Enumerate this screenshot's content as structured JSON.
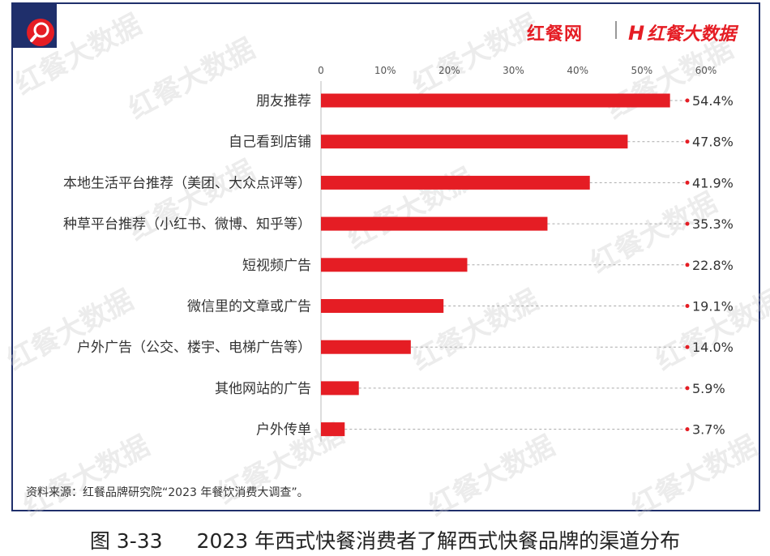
{
  "header": {
    "logo_left": "红餐网",
    "logo_right": "红餐大数据",
    "logo_right_mark": "H"
  },
  "watermark_text": "红餐大数据",
  "colors": {
    "bar": "#e51d24",
    "frame": "#1f2f6b",
    "text": "#333333",
    "leader": "#aaaaaa"
  },
  "chart_data": {
    "type": "bar",
    "orientation": "horizontal",
    "categories": [
      "朋友推荐",
      "自己看到店铺",
      "本地生活平台推荐（美团、大众点评等）",
      "种草平台推荐（小红书、微博、知乎等）",
      "短视频广告",
      "微信里的文章或广告",
      "户外广告（公交、楼宇、电梯广告等）",
      "其他网站的广告",
      "户外传单"
    ],
    "values": [
      54.4,
      47.8,
      41.9,
      35.3,
      22.8,
      19.1,
      14.0,
      5.9,
      3.7
    ],
    "value_labels": [
      "54.4%",
      "47.8%",
      "41.9%",
      "35.3%",
      "22.8%",
      "19.1%",
      "14.0%",
      "5.9%",
      "3.7%"
    ],
    "x_ticks": [
      0,
      10,
      20,
      30,
      40,
      50,
      60
    ],
    "x_tick_labels": [
      "0",
      "10%",
      "20%",
      "30%",
      "40%",
      "50%",
      "60%"
    ],
    "xlim": [
      0,
      60
    ],
    "grid": false,
    "axis_position": "top"
  },
  "source": "资料来源：红餐品牌研究院“2023 年餐饮消费大调查”。",
  "caption": {
    "number": "图 3-33",
    "title": "2023 年西式快餐消费者了解西式快餐品牌的渠道分布"
  }
}
